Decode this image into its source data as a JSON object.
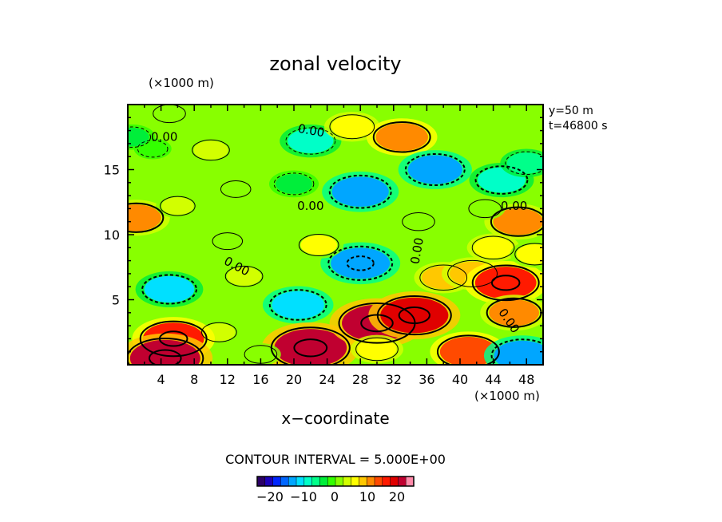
{
  "chart_data": {
    "type": "heatmap",
    "title": "zonal velocity",
    "xlabel": "x−coordinate",
    "ylabel": "",
    "x_unit": "(×1000 m)",
    "y_unit": "(×1000 m)",
    "xlim": [
      0,
      50
    ],
    "ylim": [
      0,
      20
    ],
    "xticks": [
      4,
      8,
      12,
      16,
      20,
      24,
      28,
      32,
      36,
      40,
      44,
      48
    ],
    "yticks": [
      5,
      10,
      15
    ],
    "info": [
      "y=50 m",
      "t=46800 s"
    ],
    "contour_interval_text": "CONTOUR INTERVAL = 5.000E+00",
    "contour_labels": [
      "0.00",
      "0.00",
      "0.00",
      "0.00",
      "0.00",
      "0.00"
    ],
    "colorbar": {
      "ticks": [
        "−20",
        "−10",
        "0",
        "10",
        "20"
      ],
      "colors": [
        "#2b0066",
        "#1c00b8",
        "#0026ff",
        "#0066ff",
        "#00a6ff",
        "#00e0ff",
        "#00ffc8",
        "#00ff8a",
        "#00ee3a",
        "#33ff00",
        "#88ff00",
        "#d2ff00",
        "#ffff00",
        "#ffc800",
        "#ff8a00",
        "#ff4a00",
        "#ff1a00",
        "#e00000",
        "#c00030",
        "#ff8aaa"
      ]
    },
    "features": [
      {
        "x": 5,
        "y": 19.3,
        "value": 2
      },
      {
        "x": 3,
        "y": 16.6,
        "value": -1
      },
      {
        "x": 10,
        "y": 16.5,
        "value": 4
      },
      {
        "x": 22,
        "y": 17.2,
        "value": -9
      },
      {
        "x": 27,
        "y": 18.3,
        "value": 7
      },
      {
        "x": 33,
        "y": 17.5,
        "value": 12
      },
      {
        "x": 37,
        "y": 15,
        "value": -13
      },
      {
        "x": 45,
        "y": 14.2,
        "value": -10
      },
      {
        "x": 48,
        "y": 15.5,
        "value": -6
      },
      {
        "x": 13,
        "y": 13.5,
        "value": 1
      },
      {
        "x": 28,
        "y": 13.3,
        "value": -14
      },
      {
        "x": 20,
        "y": 13.9,
        "value": -5
      },
      {
        "x": 1,
        "y": 11.3,
        "value": 11
      },
      {
        "x": 6,
        "y": 12.2,
        "value": 3
      },
      {
        "x": 47,
        "y": 11,
        "value": 11
      },
      {
        "x": 43,
        "y": 12,
        "value": 2
      },
      {
        "x": 28,
        "y": 7.8,
        "value": -15
      },
      {
        "x": 23,
        "y": 9.2,
        "value": 5
      },
      {
        "x": 5,
        "y": 5.8,
        "value": -11
      },
      {
        "x": 14,
        "y": 6.8,
        "value": 4
      },
      {
        "x": 20.5,
        "y": 4.6,
        "value": -12
      },
      {
        "x": 11,
        "y": 2.5,
        "value": 3
      },
      {
        "x": 5.5,
        "y": 2,
        "value": 16
      },
      {
        "x": 4.5,
        "y": 0.5,
        "value": 20
      },
      {
        "x": 22,
        "y": 1.3,
        "value": 21
      },
      {
        "x": 30,
        "y": 3.2,
        "value": 20
      },
      {
        "x": 34.5,
        "y": 3.8,
        "value": 19
      },
      {
        "x": 30,
        "y": 1.2,
        "value": 6
      },
      {
        "x": 38,
        "y": 6.7,
        "value": 8
      },
      {
        "x": 41.5,
        "y": 7,
        "value": 9
      },
      {
        "x": 45.5,
        "y": 6.3,
        "value": 16
      },
      {
        "x": 46.5,
        "y": 4,
        "value": 11
      },
      {
        "x": 41,
        "y": 1,
        "value": 14
      },
      {
        "x": 47.5,
        "y": 0.7,
        "value": -14
      },
      {
        "x": 44,
        "y": 9,
        "value": 6
      },
      {
        "x": 49,
        "y": 8.5,
        "value": 5
      },
      {
        "x": 16,
        "y": 0.8,
        "value": 2
      },
      {
        "x": 35,
        "y": 11,
        "value": 2
      },
      {
        "x": 12,
        "y": 9.5,
        "value": 1
      },
      {
        "x": 0.5,
        "y": 17.5,
        "value": -4
      }
    ]
  }
}
